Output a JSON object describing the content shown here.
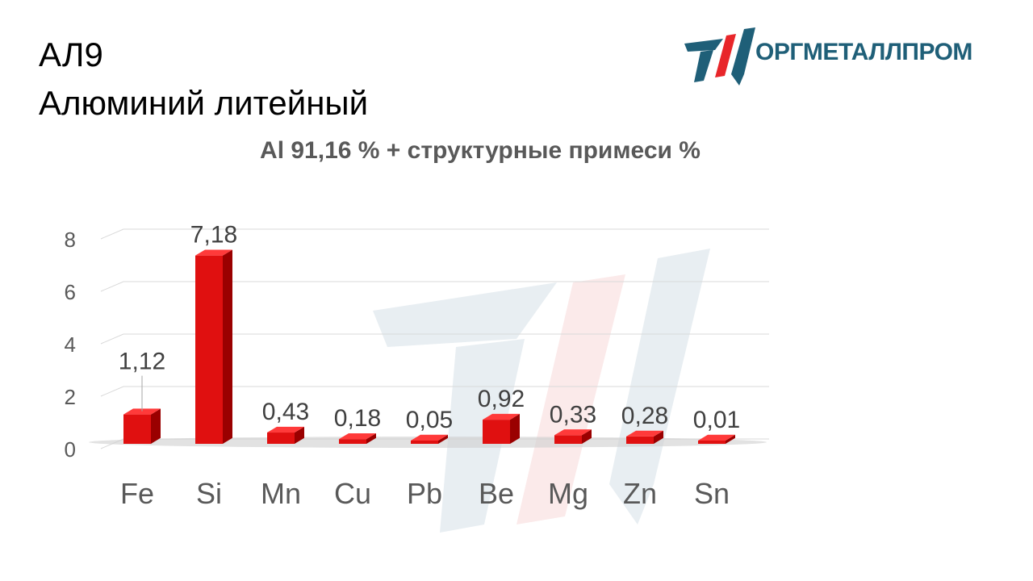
{
  "header": {
    "code": "АЛ9",
    "name": "Алюминий литейный"
  },
  "logo": {
    "text": "ОРГМЕТАЛЛПРОМ"
  },
  "colors": {
    "bar": "#e01010",
    "bar_dark": "#9a0000",
    "bar_top": "#ff3a3a",
    "logo_blue": "#1f5f78",
    "logo_red": "#e8262a",
    "grid": "#d9d9d9",
    "axis_text": "#595959"
  },
  "chart_data": {
    "type": "bar",
    "title": "Al 91,16 % + структурные примеси %",
    "categories": [
      "Fe",
      "Si",
      "Mn",
      "Cu",
      "Pb",
      "Be",
      "Mg",
      "Zn",
      "Sn"
    ],
    "values": [
      1.12,
      7.18,
      0.43,
      0.18,
      0.05,
      0.92,
      0.33,
      0.28,
      0.01
    ],
    "value_labels": [
      "1,12",
      "7,18",
      "0,43",
      "0,18",
      "0,05",
      "0,92",
      "0,33",
      "0,28",
      "0,01"
    ],
    "y_ticks": [
      "0",
      "2",
      "4",
      "6",
      "8"
    ],
    "ylim": [
      0,
      8
    ],
    "grid": true,
    "style": "3d"
  }
}
